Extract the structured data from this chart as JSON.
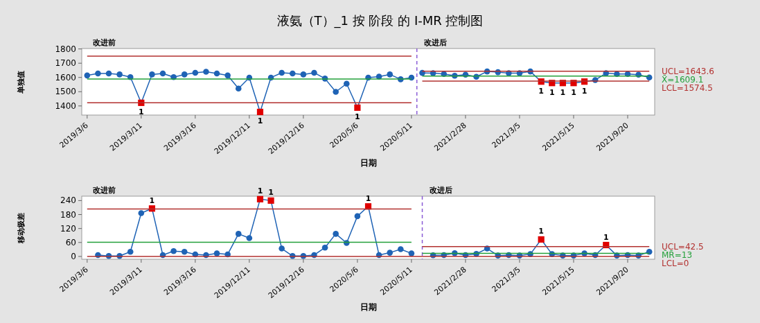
{
  "chart_data": [
    {
      "type": "line",
      "title": "液氨（T）_1 按 阶段 的 I-MR 控制图",
      "xlabel": "日期",
      "ylabel": "单独值",
      "marker": "circle",
      "annotations": [
        "改进前",
        "改进后",
        "1",
        "1",
        "1",
        "1",
        "1",
        "1",
        "1",
        "1"
      ],
      "categories": [
        "2019/3/6",
        null,
        null,
        null,
        null,
        "2019/3/11",
        null,
        null,
        null,
        null,
        "2019/3/16",
        null,
        null,
        null,
        null,
        "2019/12/11",
        null,
        null,
        null,
        null,
        "2019/12/16",
        null,
        null,
        null,
        null,
        "2020/5/6",
        null,
        null,
        null,
        null,
        "2020/5/11",
        null,
        null,
        null,
        null,
        "2021/2/28",
        null,
        null,
        null,
        null,
        "2021/3/5",
        null,
        null,
        null,
        null,
        "2021/5/15",
        null,
        null,
        null,
        null,
        "2021/9/20",
        null,
        null
      ],
      "ylim": [
        1336,
        1803
      ],
      "yticks": [
        1400,
        1500,
        1600,
        1700,
        1800
      ],
      "series": [
        {
          "color": "#1f63b5",
          "values": [
            1614,
            1628,
            1628,
            1621,
            1602,
            1422,
            1621,
            1628,
            1602,
            1621,
            1633,
            1640,
            1628,
            1614,
            1522,
            1599,
            1358,
            1599,
            1633,
            1628,
            1621,
            1633,
            1592,
            1499,
            1556,
            1388,
            1599,
            1606,
            1621,
            1587,
            1599,
            null,
            null,
            null,
            null,
            null,
            null,
            null,
            null,
            null,
            null,
            null,
            null,
            null,
            null,
            null,
            null,
            null,
            null,
            null,
            null,
            null,
            null
          ],
          "colors": [
            "#1f63b5",
            "#1f63b5",
            "#1f63b5",
            "#1f63b5",
            "#1f63b5",
            "#e00000",
            "#1f63b5",
            "#1f63b5",
            "#1f63b5",
            "#1f63b5",
            "#1f63b5",
            "#1f63b5",
            "#1f63b5",
            "#1f63b5",
            "#1f63b5",
            "#1f63b5",
            "#e00000",
            "#1f63b5",
            "#1f63b5",
            "#1f63b5",
            "#1f63b5",
            "#1f63b5",
            "#1f63b5",
            "#1f63b5",
            "#1f63b5",
            "#e00000",
            "#1f63b5",
            "#1f63b5",
            "#1f63b5",
            "#1f63b5",
            "#1f63b5",
            null,
            null,
            null,
            null,
            null,
            null,
            null,
            null,
            null,
            null,
            null,
            null,
            null,
            null,
            null,
            null,
            null,
            null,
            null,
            null,
            null,
            null
          ]
        },
        {
          "color": "#1f63b5",
          "values": [
            null,
            null,
            null,
            null,
            null,
            null,
            null,
            null,
            null,
            null,
            null,
            null,
            null,
            null,
            null,
            null,
            null,
            null,
            null,
            null,
            null,
            null,
            null,
            null,
            null,
            null,
            null,
            null,
            null,
            null,
            null,
            1632,
            1630,
            1624,
            1612,
            1619,
            1605,
            1642,
            1637,
            1630,
            1630,
            1642,
            1571,
            1561,
            1561,
            1561,
            1571,
            1582,
            1630,
            1624,
            1624,
            1619,
            1600
          ],
          "colors": [
            null,
            null,
            null,
            null,
            null,
            null,
            null,
            null,
            null,
            null,
            null,
            null,
            null,
            null,
            null,
            null,
            null,
            null,
            null,
            null,
            null,
            null,
            null,
            null,
            null,
            null,
            null,
            null,
            null,
            null,
            null,
            "#1f63b5",
            "#1f63b5",
            "#1f63b5",
            "#1f63b5",
            "#1f63b5",
            "#1f63b5",
            "#1f63b5",
            "#1f63b5",
            "#1f63b5",
            "#1f63b5",
            "#1f63b5",
            "#e00000",
            "#e00000",
            "#e00000",
            "#e00000",
            "#e00000",
            "#1f63b5",
            "#1f63b5",
            "#1f63b5",
            "#1f63b5",
            "#1f63b5",
            "#1f63b5"
          ]
        },
        {
          "color": "#b2302f",
          "marker": "none",
          "values": [
            1750,
            1750,
            1750,
            1750,
            1750,
            1750,
            1750,
            1750,
            1750,
            1750,
            1750,
            1750,
            1750,
            1750,
            1750,
            1750,
            1750,
            1750,
            1750,
            1750,
            1750,
            1750,
            1750,
            1750,
            1750,
            1750,
            1750,
            1750,
            1750,
            1750,
            1750,
            null,
            null,
            null,
            null,
            null,
            null,
            null,
            null,
            null,
            null,
            null,
            null,
            null,
            null,
            null,
            null,
            null,
            null,
            null,
            null,
            null,
            null
          ]
        },
        {
          "color": "#23a03a",
          "marker": "none",
          "values": [
            1589,
            1589,
            1589,
            1589,
            1589,
            1589,
            1589,
            1589,
            1589,
            1589,
            1589,
            1589,
            1589,
            1589,
            1589,
            1589,
            1589,
            1589,
            1589,
            1589,
            1589,
            1589,
            1589,
            1589,
            1589,
            1589,
            1589,
            1589,
            1589,
            1589,
            1589,
            null,
            null,
            null,
            null,
            null,
            null,
            null,
            null,
            null,
            null,
            null,
            null,
            null,
            null,
            null,
            null,
            null,
            null,
            null,
            null,
            null,
            null
          ]
        },
        {
          "color": "#b2302f",
          "marker": "none",
          "values": [
            1422,
            1422,
            1422,
            1422,
            1422,
            1422,
            1422,
            1422,
            1422,
            1422,
            1422,
            1422,
            1422,
            1422,
            1422,
            1422,
            1422,
            1422,
            1422,
            1422,
            1422,
            1422,
            1422,
            1422,
            1422,
            1422,
            1422,
            1422,
            1422,
            1422,
            1422,
            null,
            null,
            null,
            null,
            null,
            null,
            null,
            null,
            null,
            null,
            null,
            null,
            null,
            null,
            null,
            null,
            null,
            null,
            null,
            null,
            null,
            null
          ]
        },
        {
          "name": "UCL=1643.6",
          "color": "#b2302f",
          "marker": "none",
          "values": [
            null,
            null,
            null,
            null,
            null,
            null,
            null,
            null,
            null,
            null,
            null,
            null,
            null,
            null,
            null,
            null,
            null,
            null,
            null,
            null,
            null,
            null,
            null,
            null,
            null,
            null,
            null,
            null,
            null,
            null,
            null,
            1643.6,
            1643.6,
            1643.6,
            1643.6,
            1643.6,
            1643.6,
            1643.6,
            1643.6,
            1643.6,
            1643.6,
            1643.6,
            1643.6,
            1643.6,
            1643.6,
            1643.6,
            1643.6,
            1643.6,
            1643.6,
            1643.6,
            1643.6,
            1643.6,
            1643.6
          ]
        },
        {
          "name": "X̄=1609.1",
          "color": "#23a03a",
          "marker": "none",
          "values": [
            null,
            null,
            null,
            null,
            null,
            null,
            null,
            null,
            null,
            null,
            null,
            null,
            null,
            null,
            null,
            null,
            null,
            null,
            null,
            null,
            null,
            null,
            null,
            null,
            null,
            null,
            null,
            null,
            null,
            null,
            null,
            1609.1,
            1609.1,
            1609.1,
            1609.1,
            1609.1,
            1609.1,
            1609.1,
            1609.1,
            1609.1,
            1609.1,
            1609.1,
            1609.1,
            1609.1,
            1609.1,
            1609.1,
            1609.1,
            1609.1,
            1609.1,
            1609.1,
            1609.1,
            1609.1,
            1609.1
          ]
        },
        {
          "name": "LCL=1574.5",
          "color": "#b2302f",
          "marker": "none",
          "values": [
            null,
            null,
            null,
            null,
            null,
            null,
            null,
            null,
            null,
            null,
            null,
            null,
            null,
            null,
            null,
            null,
            null,
            null,
            null,
            null,
            null,
            null,
            null,
            null,
            null,
            null,
            null,
            null,
            null,
            null,
            null,
            1574.5,
            1574.5,
            1574.5,
            1574.5,
            1574.5,
            1574.5,
            1574.5,
            1574.5,
            1574.5,
            1574.5,
            1574.5,
            1574.5,
            1574.5,
            1574.5,
            1574.5,
            1574.5,
            1574.5,
            1574.5,
            1574.5,
            1574.5,
            1574.5,
            1574.5
          ]
        }
      ]
    },
    {
      "type": "line",
      "xlabel": "日期",
      "ylabel": "移动极差",
      "marker": "circle",
      "annotations": [
        "改进前",
        "改进后",
        "1",
        "1",
        "1",
        "1",
        "1",
        "1"
      ],
      "categories": [
        "2019/3/6",
        null,
        null,
        null,
        null,
        "2019/3/11",
        null,
        null,
        null,
        null,
        "2019/3/16",
        null,
        null,
        null,
        null,
        "2019/12/11",
        null,
        null,
        null,
        null,
        "2019/12/16",
        null,
        null,
        null,
        null,
        "2020/5/6",
        null,
        null,
        null,
        null,
        "2020/5/11",
        null,
        null,
        null,
        null,
        "2021/2/28",
        null,
        null,
        null,
        null,
        "2021/3/5",
        null,
        null,
        null,
        null,
        "2021/5/15",
        null,
        null,
        null,
        null,
        "2021/9/20",
        null,
        null
      ],
      "ylim": [
        -12,
        259
      ],
      "yticks": [
        0,
        60,
        120,
        180,
        240
      ],
      "series": [
        {
          "color": "#1f63b5",
          "values": [
            null,
            6,
            2,
            2,
            20,
            186,
            206,
            6,
            23,
            20,
            9,
            6,
            13,
            9,
            97,
            79,
            246,
            240,
            34,
            2,
            2,
            6,
            38,
            97,
            58,
            173,
            215,
            6,
            16,
            31,
            13,
            null,
            null,
            null,
            null,
            null,
            null,
            null,
            null,
            null,
            null,
            null,
            null,
            null,
            null,
            null,
            null,
            null,
            null,
            null,
            null,
            null,
            null
          ],
          "colors": [
            null,
            "#1f63b5",
            "#1f63b5",
            "#1f63b5",
            "#1f63b5",
            "#1f63b5",
            "#e00000",
            "#1f63b5",
            "#1f63b5",
            "#1f63b5",
            "#1f63b5",
            "#1f63b5",
            "#1f63b5",
            "#1f63b5",
            "#1f63b5",
            "#1f63b5",
            "#e00000",
            "#e00000",
            "#1f63b5",
            "#1f63b5",
            "#1f63b5",
            "#1f63b5",
            "#1f63b5",
            "#1f63b5",
            "#1f63b5",
            "#1f63b5",
            "#e00000",
            "#1f63b5",
            "#1f63b5",
            "#1f63b5",
            "#1f63b5",
            null,
            null,
            null,
            null,
            null,
            null,
            null,
            null,
            null,
            null,
            null,
            null,
            null,
            null,
            null,
            null,
            null,
            null,
            null,
            null,
            null,
            null
          ]
        },
        {
          "color": "#1f63b5",
          "values": [
            null,
            null,
            null,
            null,
            null,
            null,
            null,
            null,
            null,
            null,
            null,
            null,
            null,
            null,
            null,
            null,
            null,
            null,
            null,
            null,
            null,
            null,
            null,
            null,
            null,
            null,
            null,
            null,
            null,
            null,
            null,
            null,
            5,
            6,
            14,
            6,
            11,
            34,
            4,
            6,
            4,
            10,
            73,
            10,
            4,
            4,
            13,
            6,
            49,
            4,
            6,
            4,
            20
          ],
          "colors": [
            null,
            null,
            null,
            null,
            null,
            null,
            null,
            null,
            null,
            null,
            null,
            null,
            null,
            null,
            null,
            null,
            null,
            null,
            null,
            null,
            null,
            null,
            null,
            null,
            null,
            null,
            null,
            null,
            null,
            null,
            null,
            null,
            "#1f63b5",
            "#1f63b5",
            "#1f63b5",
            "#1f63b5",
            "#1f63b5",
            "#1f63b5",
            "#1f63b5",
            "#1f63b5",
            "#1f63b5",
            "#1f63b5",
            "#e00000",
            "#1f63b5",
            "#1f63b5",
            "#1f63b5",
            "#1f63b5",
            "#1f63b5",
            "#e00000",
            "#1f63b5",
            "#1f63b5",
            "#1f63b5",
            "#1f63b5"
          ]
        },
        {
          "color": "#b2302f",
          "marker": "none",
          "values": [
            204,
            204,
            204,
            204,
            204,
            204,
            204,
            204,
            204,
            204,
            204,
            204,
            204,
            204,
            204,
            204,
            204,
            204,
            204,
            204,
            204,
            204,
            204,
            204,
            204,
            204,
            204,
            204,
            204,
            204,
            204,
            null,
            null,
            null,
            null,
            null,
            null,
            null,
            null,
            null,
            null,
            null,
            null,
            null,
            null,
            null,
            null,
            null,
            null,
            null,
            null,
            null,
            null
          ]
        },
        {
          "color": "#23a03a",
          "marker": "none",
          "values": [
            61,
            61,
            61,
            61,
            61,
            61,
            61,
            61,
            61,
            61,
            61,
            61,
            61,
            61,
            61,
            61,
            61,
            61,
            61,
            61,
            61,
            61,
            61,
            61,
            61,
            61,
            61,
            61,
            61,
            61,
            61,
            null,
            null,
            null,
            null,
            null,
            null,
            null,
            null,
            null,
            null,
            null,
            null,
            null,
            null,
            null,
            null,
            null,
            null,
            null,
            null,
            null,
            null
          ]
        },
        {
          "name": "UCL=42.5",
          "color": "#b2302f",
          "marker": "none",
          "values": [
            null,
            null,
            null,
            null,
            null,
            null,
            null,
            null,
            null,
            null,
            null,
            null,
            null,
            null,
            null,
            null,
            null,
            null,
            null,
            null,
            null,
            null,
            null,
            null,
            null,
            null,
            null,
            null,
            null,
            null,
            null,
            42.5,
            42.5,
            42.5,
            42.5,
            42.5,
            42.5,
            42.5,
            42.5,
            42.5,
            42.5,
            42.5,
            42.5,
            42.5,
            42.5,
            42.5,
            42.5,
            42.5,
            42.5,
            42.5,
            42.5,
            42.5,
            42.5
          ]
        },
        {
          "name": "M̄R̄=13",
          "color": "#23a03a",
          "marker": "none",
          "values": [
            null,
            null,
            null,
            null,
            null,
            null,
            null,
            null,
            null,
            null,
            null,
            null,
            null,
            null,
            null,
            null,
            null,
            null,
            null,
            null,
            null,
            null,
            null,
            null,
            null,
            null,
            null,
            null,
            null,
            null,
            null,
            13,
            13,
            13,
            13,
            13,
            13,
            13,
            13,
            13,
            13,
            13,
            13,
            13,
            13,
            13,
            13,
            13,
            13,
            13,
            13,
            13,
            13
          ]
        },
        {
          "name": "LCL=0",
          "color": "#b2302f",
          "marker": "none",
          "values": [
            0,
            0,
            0,
            0,
            0,
            0,
            0,
            0,
            0,
            0,
            0,
            0,
            0,
            0,
            0,
            0,
            0,
            0,
            0,
            0,
            0,
            0,
            0,
            0,
            0,
            0,
            0,
            0,
            0,
            0,
            0,
            0,
            0,
            0,
            0,
            0,
            0,
            0,
            0,
            0,
            0,
            0,
            0,
            0,
            0,
            0,
            0,
            0,
            0,
            0,
            0,
            0,
            0
          ]
        }
      ]
    }
  ]
}
